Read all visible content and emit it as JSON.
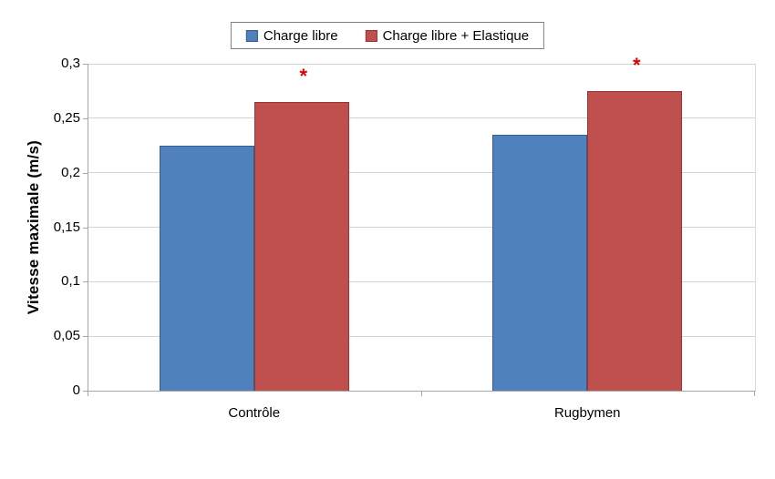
{
  "figure": {
    "background": "#ffffff",
    "gridline_color": "#d3d3d3",
    "axis_color": "#a6a6a6",
    "text_color": "#000000"
  },
  "legend": {
    "border_color": "#7f7f7f",
    "items": [
      {
        "label": "Charge libre",
        "color": "#4F81BD"
      },
      {
        "label": "Charge libre + Elastique",
        "color": "#C0504D"
      }
    ]
  },
  "chart_data": {
    "type": "bar",
    "title": "",
    "categories": [
      "Contrôle",
      "Rugbymen"
    ],
    "series": [
      {
        "name": "Charge libre",
        "values": [
          0.225,
          0.235
        ],
        "color": "#4F81BD",
        "border_color": "#385D8A"
      },
      {
        "name": "Charge libre + Elastique",
        "values": [
          0.265,
          0.275
        ],
        "color": "#C0504D",
        "border_color": "#943634"
      }
    ],
    "xlabel": "",
    "ylabel": "Vitesse maximale (m/s)",
    "ylim": [
      0,
      0.3
    ],
    "ytick_step": 0.05,
    "ytick_labels": [
      "0",
      "0,05",
      "0,1",
      "0,15",
      "0,2",
      "0,25",
      "0,3"
    ],
    "grid": true,
    "legend_position": "top-center",
    "annotations": [
      {
        "text": "*",
        "category_index": 0,
        "series_index": 1,
        "color": "#E00000"
      },
      {
        "text": "*",
        "category_index": 1,
        "series_index": 1,
        "color": "#E00000"
      }
    ]
  }
}
